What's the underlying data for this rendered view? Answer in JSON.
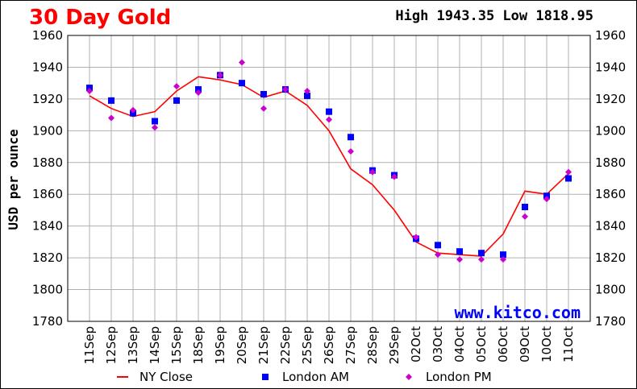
{
  "chart_data": {
    "type": "line",
    "title": "30 Day Gold",
    "high_low": "High 1943.35 Low 1818.95",
    "watermark": "www.kitco.com",
    "ylabel": "USD per ounce",
    "xlabel": "",
    "ylim": [
      1780,
      1960
    ],
    "yticks": [
      "1780",
      "1800",
      "1820",
      "1840",
      "1860",
      "1880",
      "1900",
      "1920",
      "1940",
      "1960"
    ],
    "grid": true,
    "legend_position": "bottom",
    "categories": [
      "11Sep",
      "12Sep",
      "13Sep",
      "14Sep",
      "15Sep",
      "18Sep",
      "19Sep",
      "20Sep",
      "21Sep",
      "22Sep",
      "25Sep",
      "26Sep",
      "27Sep",
      "28Sep",
      "29Sep",
      "02Oct",
      "03Oct",
      "04Oct",
      "05Oct",
      "06Oct",
      "09Oct",
      "10Oct",
      "11Oct"
    ],
    "series": [
      {
        "name": "NY Close",
        "marker": "line",
        "color": "#ff0000",
        "values": [
          1922,
          1914,
          1909,
          1912,
          1925,
          1934,
          1932,
          1929,
          1921,
          1925,
          1916,
          1900,
          1876,
          1866,
          1850,
          1830,
          1823,
          1822,
          1821,
          1835,
          1862,
          1860,
          1873
        ]
      },
      {
        "name": "London AM",
        "marker": "square",
        "color": "#0000ff",
        "values": [
          1927,
          1919,
          1911,
          1906,
          1919,
          1926,
          1935,
          1930,
          1923,
          1926,
          1922,
          1912,
          1896,
          1875,
          1872,
          1832,
          1828,
          1824,
          1823,
          1822,
          1852,
          1859,
          1870
        ]
      },
      {
        "name": "London PM",
        "marker": "diamond",
        "color": "#cc00cc",
        "values": [
          1925,
          1908,
          1913,
          1902,
          1928,
          1924,
          1935,
          1943,
          1914,
          1926,
          1925,
          1907,
          1887,
          1874,
          1871,
          1833,
          1822,
          1819,
          1819,
          1819,
          1846,
          1857,
          1874
        ]
      }
    ]
  }
}
